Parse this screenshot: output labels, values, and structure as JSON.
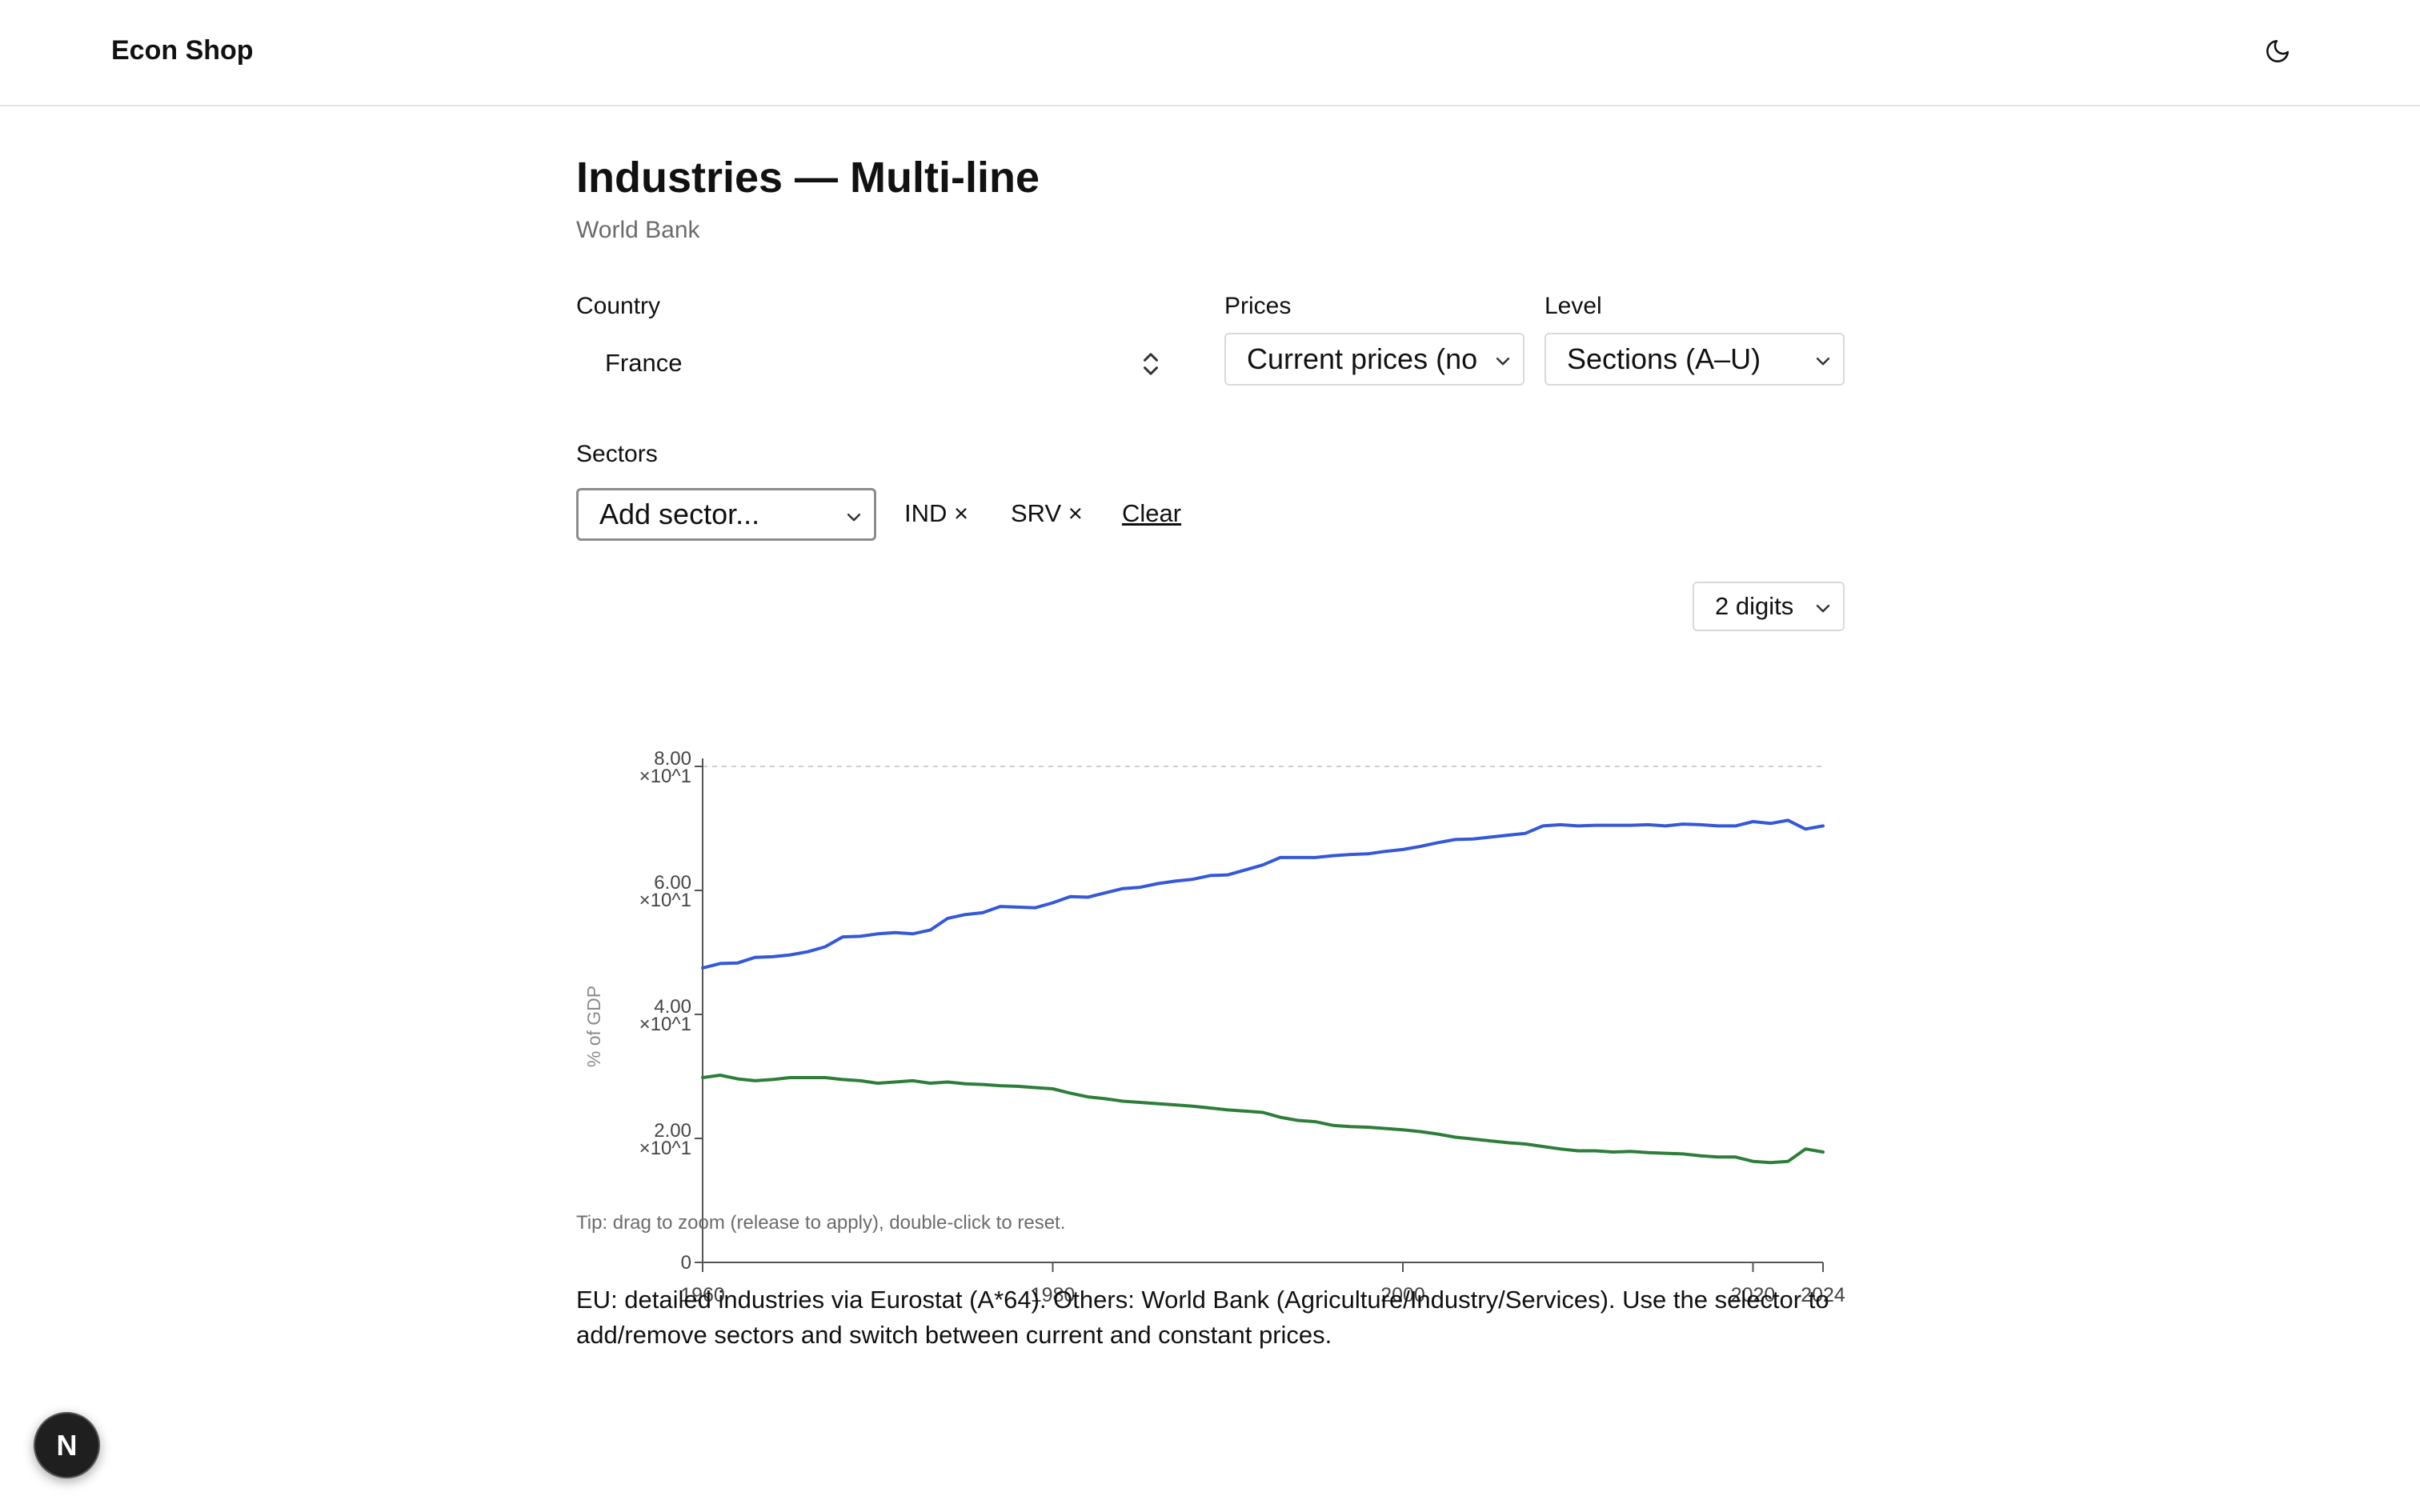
{
  "header": {
    "brand": "Econ Shop",
    "theme_toggle_icon": "moon-icon"
  },
  "page": {
    "title": "Industries — Multi-line",
    "subtitle": "World Bank"
  },
  "filters": {
    "country_label": "Country",
    "country_value": "France",
    "prices_label": "Prices",
    "prices_value": "Current prices (no",
    "level_label": "Level",
    "level_value": "Sections (A–U)",
    "sectors_label": "Sectors",
    "add_sector_value": "Add sector...",
    "chips": [
      "IND ×",
      "SRV ×"
    ],
    "clear_label": "Clear"
  },
  "digits_select": {
    "value": "2 digits"
  },
  "chart_data": {
    "type": "line",
    "title": "",
    "xlabel": "",
    "ylabel": "% of GDP",
    "xlim": [
      1960,
      2024
    ],
    "ylim": [
      0,
      80
    ],
    "x_ticks": [
      "1960",
      "1980",
      "2000",
      "2020",
      "2024"
    ],
    "x_tick_values": [
      1960,
      1980,
      2000,
      2020,
      2024
    ],
    "y_ticks": [
      {
        "value": 0,
        "label": "0",
        "exp": ""
      },
      {
        "value": 20,
        "label": "2.00",
        "exp": "×10^1"
      },
      {
        "value": 40,
        "label": "4.00",
        "exp": "×10^1"
      },
      {
        "value": 60,
        "label": "6.00",
        "exp": "×10^1"
      },
      {
        "value": 80,
        "label": "8.00",
        "exp": "×10^1"
      }
    ],
    "grid": "dashed line at 80 only",
    "legend": "none",
    "x": [
      1960,
      1961,
      1962,
      1963,
      1964,
      1965,
      1966,
      1967,
      1968,
      1969,
      1970,
      1971,
      1972,
      1973,
      1974,
      1975,
      1976,
      1977,
      1978,
      1979,
      1980,
      1981,
      1982,
      1983,
      1984,
      1985,
      1986,
      1987,
      1988,
      1989,
      1990,
      1991,
      1992,
      1993,
      1994,
      1995,
      1996,
      1997,
      1998,
      1999,
      2000,
      2001,
      2002,
      2003,
      2004,
      2005,
      2006,
      2007,
      2008,
      2009,
      2010,
      2011,
      2012,
      2013,
      2014,
      2015,
      2016,
      2017,
      2018,
      2019,
      2020,
      2021,
      2022,
      2023,
      2024
    ],
    "series": [
      {
        "color": "#3558d6",
        "values": [
          47.5,
          48.2,
          48.3,
          49.2,
          49.3,
          49.6,
          50.1,
          50.9,
          52.5,
          52.6,
          53.0,
          53.2,
          53.0,
          53.6,
          55.5,
          56.1,
          56.4,
          57.4,
          57.3,
          57.2,
          58.0,
          59.0,
          58.9,
          59.6,
          60.3,
          60.5,
          61.1,
          61.5,
          61.8,
          62.4,
          62.5,
          63.3,
          64.1,
          65.3,
          65.3,
          65.3,
          65.6,
          65.8,
          65.9,
          66.3,
          66.6,
          67.1,
          67.7,
          68.2,
          68.3,
          68.6,
          68.9,
          69.2,
          70.4,
          70.6,
          70.4,
          70.5,
          70.5,
          70.5,
          70.6,
          70.4,
          70.7,
          70.6,
          70.4,
          70.4,
          71.1,
          70.8,
          71.3,
          69.9,
          70.4
        ]
      },
      {
        "color": "#2e7d3a",
        "values": [
          29.8,
          30.2,
          29.6,
          29.3,
          29.5,
          29.8,
          29.8,
          29.8,
          29.5,
          29.3,
          28.9,
          29.1,
          29.3,
          28.9,
          29.1,
          28.8,
          28.7,
          28.5,
          28.4,
          28.2,
          28.0,
          27.3,
          26.7,
          26.4,
          26.0,
          25.8,
          25.6,
          25.4,
          25.2,
          24.9,
          24.6,
          24.4,
          24.2,
          23.4,
          22.9,
          22.7,
          22.1,
          21.9,
          21.8,
          21.6,
          21.4,
          21.1,
          20.7,
          20.2,
          19.9,
          19.6,
          19.3,
          19.1,
          18.7,
          18.3,
          18.0,
          18.0,
          17.8,
          17.9,
          17.7,
          17.6,
          17.5,
          17.2,
          17.0,
          17.0,
          16.3,
          16.1,
          16.3,
          18.3,
          17.8
        ]
      }
    ]
  },
  "tip": "Tip: drag to zoom (release to apply), double-click to reset.",
  "note": "EU: detailed industries via Eurostat (A*64). Others: World Bank (Agriculture/Industry/Services). Use the selector to add/remove sectors and switch between current and constant prices.",
  "fab": {
    "label": "N"
  }
}
